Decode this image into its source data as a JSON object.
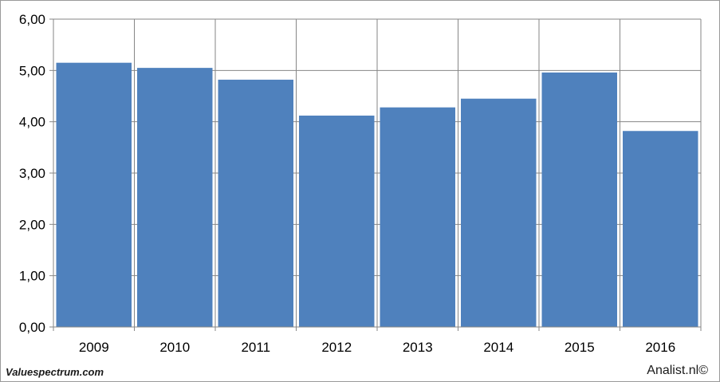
{
  "footer": {
    "source_left": "Valuespectrum.com",
    "source_right": "Analist.nl©"
  },
  "colors": {
    "bar": "#4f81bd",
    "grid": "#868686",
    "axis": "#868686"
  },
  "chart_data": {
    "type": "bar",
    "categories": [
      "2009",
      "2010",
      "2011",
      "2012",
      "2013",
      "2014",
      "2015",
      "2016"
    ],
    "series": [
      {
        "values": [
          5.15,
          5.05,
          4.82,
          4.12,
          4.28,
          4.45,
          4.96,
          3.82
        ]
      }
    ],
    "ylim": [
      0,
      6
    ],
    "y_ticks": [
      "0,00",
      "1,00",
      "2,00",
      "3,00",
      "4,00",
      "5,00",
      "6,00"
    ],
    "grid": true,
    "legend": "none",
    "title": "",
    "xlabel": "",
    "ylabel": ""
  }
}
